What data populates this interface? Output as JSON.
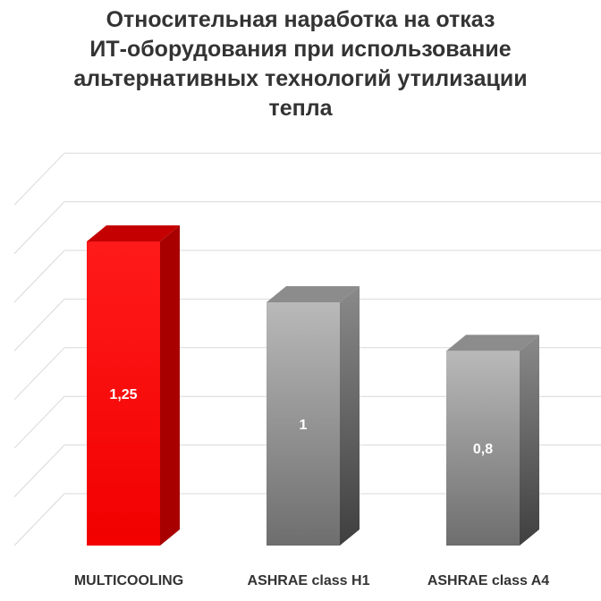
{
  "chart_data": {
    "type": "bar",
    "title_lines": [
      "Относительная наработка на отказ",
      "ИТ-оборудования при использование",
      "альтернативных технологий утилизации",
      "тепла"
    ],
    "categories": [
      "MULTICOOLING",
      "ASHRAE class H1",
      "ASHRAE class A4"
    ],
    "values": [
      1.25,
      1,
      0.8
    ],
    "data_labels": [
      "1,25",
      "1",
      "0,8"
    ],
    "ylim": [
      0,
      1.5
    ],
    "grid": true,
    "legend": false,
    "bar_style": "3d",
    "colors": {
      "highlight_bar": "#ff0000",
      "other_bars": "#9a9a9a",
      "gridlines": "#d9d9d9",
      "data_label": "#ffffff",
      "category_label": "#333333"
    }
  }
}
